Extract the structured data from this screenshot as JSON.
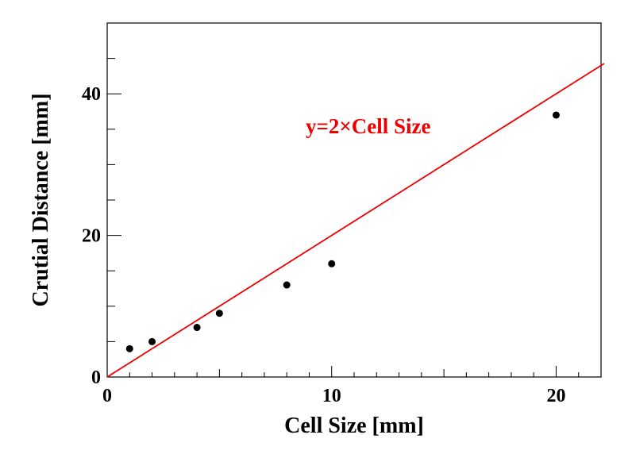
{
  "chart_data": {
    "type": "scatter",
    "xlabel": "Cell Size [mm]",
    "ylabel": "Crutial Distance [mm]",
    "xlim": [
      0,
      22
    ],
    "ylim": [
      0,
      50
    ],
    "x_ticks": [
      0,
      10,
      20
    ],
    "y_ticks": [
      0,
      20,
      40
    ],
    "x_minor_step": 5,
    "y_minor_step": 5,
    "grid": false,
    "series": [
      {
        "x": [
          1,
          2,
          4,
          5,
          8,
          10,
          20
        ],
        "y": [
          4,
          5,
          7,
          9,
          13,
          16,
          37
        ],
        "marker": "circle",
        "color": "#000000"
      }
    ],
    "fit_line": {
      "label": "y=2×Cell Size",
      "slope": 2,
      "intercept": 0,
      "color": "#ee0000"
    }
  }
}
